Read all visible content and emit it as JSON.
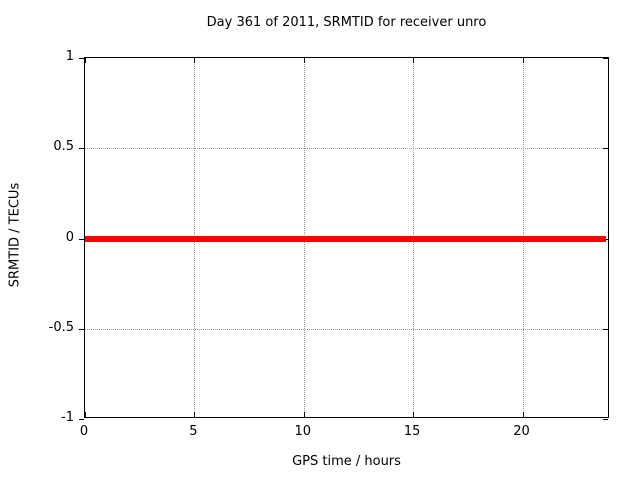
{
  "chart_data": {
    "type": "line",
    "title": "Day 361 of 2011, SRMTID for receiver unro",
    "xlabel": "GPS time / hours",
    "ylabel": "SRMTID / TECUs",
    "xlim": [
      0,
      24
    ],
    "ylim": [
      -1,
      1
    ],
    "grid": true,
    "legend": "none",
    "background_color": "#ffffff",
    "border_color": "#000000",
    "grid_color": "#9a9a9a",
    "x_ticks": [
      {
        "v": 0,
        "label": "0"
      },
      {
        "v": 5,
        "label": "5"
      },
      {
        "v": 10,
        "label": "10"
      },
      {
        "v": 15,
        "label": "15"
      },
      {
        "v": 20,
        "label": "20"
      }
    ],
    "y_ticks": [
      {
        "v": 1,
        "label": "1"
      },
      {
        "v": 0.5,
        "label": "0.5"
      },
      {
        "v": 0,
        "label": "0"
      },
      {
        "v": -0.5,
        "label": "-0.5"
      },
      {
        "v": -1,
        "label": "-1"
      }
    ],
    "series": [
      {
        "name": "SRMTID",
        "color": "#ff0000",
        "linewidth": 6,
        "points": [
          [
            0,
            0
          ],
          [
            23.8,
            0
          ]
        ]
      }
    ]
  }
}
